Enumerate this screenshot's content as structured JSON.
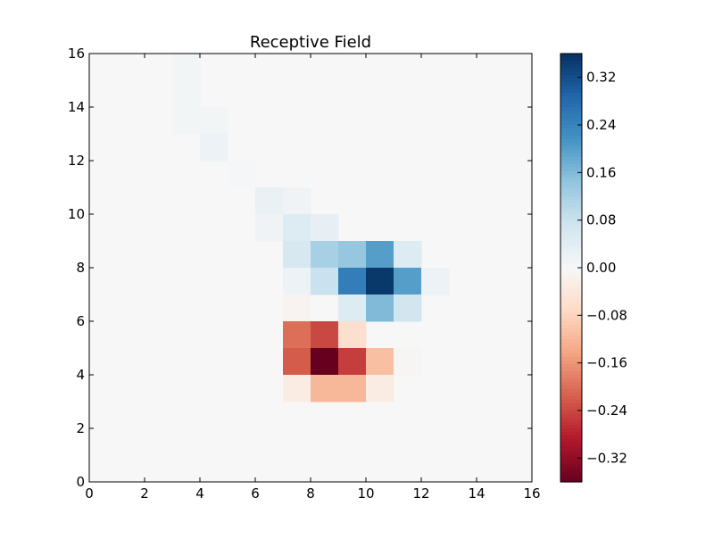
{
  "chart_data": {
    "type": "heatmap",
    "title": "Receptive Field",
    "xlabel": "",
    "ylabel": "",
    "xlim": [
      0,
      16
    ],
    "ylim": [
      0,
      16
    ],
    "xticks": [
      0,
      2,
      4,
      6,
      8,
      10,
      12,
      14,
      16
    ],
    "yticks": [
      0,
      2,
      4,
      6,
      8,
      10,
      12,
      14,
      16
    ],
    "background_value": 0.0,
    "colormap": "RdBu",
    "color_range": [
      -0.36,
      0.36
    ],
    "colorbar_ticks": [
      0.32,
      0.24,
      0.16,
      0.08,
      0.0,
      -0.08,
      -0.16,
      -0.24,
      -0.32
    ],
    "colorbar_tick_labels": [
      "0.32",
      "0.24",
      "0.16",
      "0.08",
      "0.00",
      "−0.08",
      "−0.16",
      "−0.24",
      "−0.32"
    ],
    "cells": [
      {
        "x": 3,
        "y": 15,
        "value": 0.01
      },
      {
        "x": 3,
        "y": 14,
        "value": 0.01
      },
      {
        "x": 3,
        "y": 13,
        "value": 0.01
      },
      {
        "x": 4,
        "y": 13,
        "value": 0.01
      },
      {
        "x": 4,
        "y": 12,
        "value": 0.02
      },
      {
        "x": 5,
        "y": 11,
        "value": 0.005
      },
      {
        "x": 6,
        "y": 10,
        "value": 0.025
      },
      {
        "x": 7,
        "y": 10,
        "value": 0.015
      },
      {
        "x": 6,
        "y": 9,
        "value": 0.015
      },
      {
        "x": 7,
        "y": 9,
        "value": 0.05
      },
      {
        "x": 8,
        "y": 9,
        "value": 0.03
      },
      {
        "x": 7,
        "y": 8,
        "value": 0.06
      },
      {
        "x": 8,
        "y": 8,
        "value": 0.12
      },
      {
        "x": 9,
        "y": 8,
        "value": 0.14
      },
      {
        "x": 10,
        "y": 8,
        "value": 0.2
      },
      {
        "x": 11,
        "y": 8,
        "value": 0.05
      },
      {
        "x": 7,
        "y": 7,
        "value": 0.02
      },
      {
        "x": 8,
        "y": 7,
        "value": 0.08
      },
      {
        "x": 9,
        "y": 7,
        "value": 0.25
      },
      {
        "x": 10,
        "y": 7,
        "value": 0.35
      },
      {
        "x": 11,
        "y": 7,
        "value": 0.2
      },
      {
        "x": 12,
        "y": 7,
        "value": 0.02
      },
      {
        "x": 7,
        "y": 6,
        "value": -0.01
      },
      {
        "x": 9,
        "y": 6,
        "value": 0.05
      },
      {
        "x": 10,
        "y": 6,
        "value": 0.16
      },
      {
        "x": 11,
        "y": 6,
        "value": 0.07
      },
      {
        "x": 7,
        "y": 5,
        "value": -0.2
      },
      {
        "x": 8,
        "y": 5,
        "value": -0.24
      },
      {
        "x": 9,
        "y": 5,
        "value": -0.06
      },
      {
        "x": 7,
        "y": 4,
        "value": -0.22
      },
      {
        "x": 8,
        "y": 4,
        "value": -0.36
      },
      {
        "x": 9,
        "y": 4,
        "value": -0.25
      },
      {
        "x": 10,
        "y": 4,
        "value": -0.11
      },
      {
        "x": 11,
        "y": 4,
        "value": -0.005
      },
      {
        "x": 7,
        "y": 3,
        "value": -0.03
      },
      {
        "x": 8,
        "y": 3,
        "value": -0.12
      },
      {
        "x": 9,
        "y": 3,
        "value": -0.12
      },
      {
        "x": 10,
        "y": 3,
        "value": -0.03
      }
    ]
  }
}
